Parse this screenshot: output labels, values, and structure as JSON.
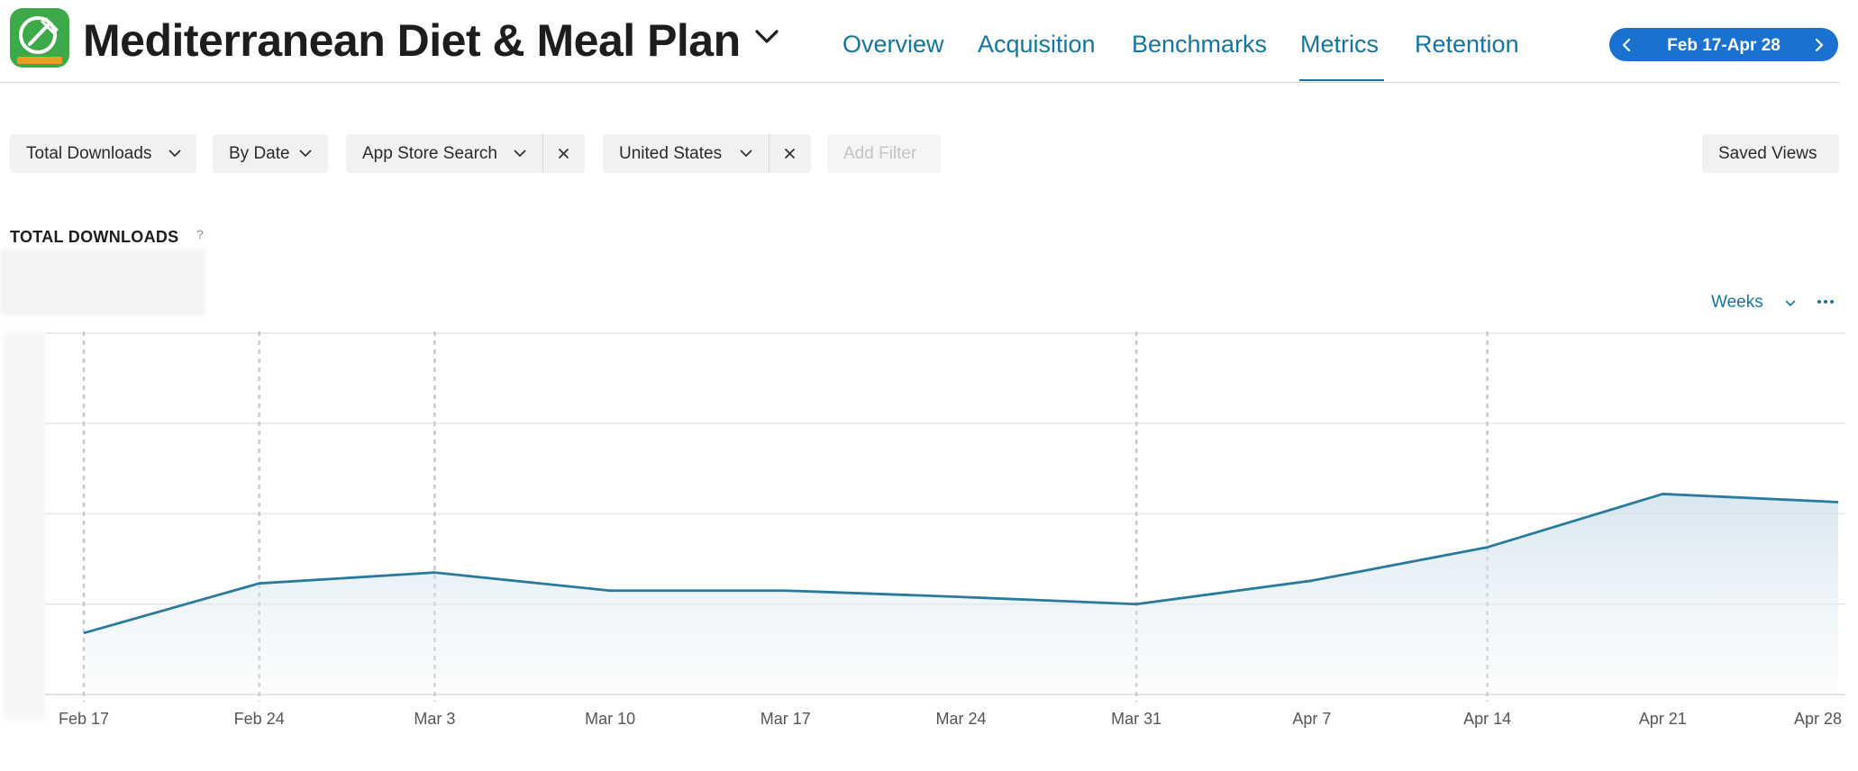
{
  "app": {
    "title": "Mediterranean Diet & Meal Plan",
    "icon": "app-icon-fork-leaf",
    "icon_color": "#3daa4a"
  },
  "nav": {
    "tabs": [
      {
        "label": "Overview",
        "active": false
      },
      {
        "label": "Acquisition",
        "active": false
      },
      {
        "label": "Benchmarks",
        "active": false
      },
      {
        "label": "Metrics",
        "active": true
      },
      {
        "label": "Retention",
        "active": false
      }
    ],
    "accent": "#16759e"
  },
  "date_range": {
    "label": "Feb 17-Apr 28",
    "prev_icon": "chevron-left-icon",
    "next_icon": "chevron-right-icon",
    "color": "#1a71cf"
  },
  "filters": {
    "measure": "Total Downloads",
    "group": "By Date",
    "source": "App Store Search",
    "territory": "United States",
    "add_filter": "Add Filter",
    "saved_views": "Saved Views"
  },
  "chart_header": {
    "title": "TOTAL DOWNLOADS",
    "help": "?",
    "granularity": "Weeks",
    "more_icon": "more-icon"
  },
  "chart_data": {
    "type": "area",
    "title": "TOTAL DOWNLOADS",
    "xlabel": "",
    "ylabel": "",
    "categories": [
      "Feb 17",
      "Feb 24",
      "Mar 3",
      "Mar 10",
      "Mar 17",
      "Mar 24",
      "Mar 31",
      "Apr 7",
      "Apr 14",
      "Apr 21",
      "Apr 28"
    ],
    "series": [
      {
        "values": [
          0.68,
          1.23,
          1.35,
          1.15,
          1.15,
          1.08,
          1.0,
          1.26,
          1.63,
          2.22,
          2.13
        ]
      }
    ],
    "y_scale": "unlabeled (values hidden in original; expressed in gridline units)",
    "ylim": [
      0,
      4
    ],
    "grid": true,
    "annotated_weeks": [
      "Feb 17",
      "Feb 24",
      "Mar 3",
      "Mar 31",
      "Apr 14"
    ],
    "line_color": "#2a7a9e"
  }
}
